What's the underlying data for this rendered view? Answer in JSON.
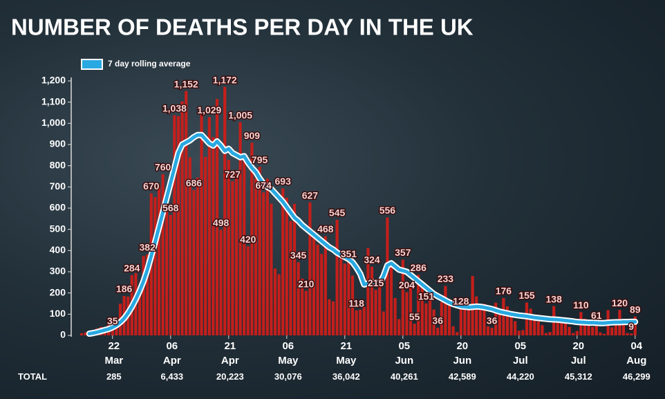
{
  "chart_data": {
    "type": "bar",
    "title": "NUMBER OF DEATHS PER DAY IN THE UK",
    "categories": [
      null,
      null,
      null,
      null,
      null,
      null,
      null,
      null,
      "22 Mar",
      null,
      null,
      null,
      null,
      null,
      null,
      null,
      null,
      null,
      null,
      null,
      null,
      null,
      null,
      "06 Apr",
      null,
      null,
      null,
      null,
      null,
      null,
      null,
      null,
      null,
      null,
      null,
      null,
      null,
      null,
      "21 Apr",
      null,
      null,
      null,
      null,
      null,
      null,
      null,
      null,
      null,
      null,
      null,
      null,
      null,
      null,
      "06 May",
      null,
      null,
      null,
      null,
      null,
      null,
      null,
      null,
      null,
      null,
      null,
      null,
      null,
      null,
      "21 May",
      null,
      null,
      null,
      null,
      null,
      null,
      null,
      null,
      null,
      null,
      null,
      null,
      null,
      null,
      "05 Jun",
      null,
      null,
      null,
      null,
      null,
      null,
      null,
      null,
      null,
      null,
      null,
      null,
      null,
      null,
      "20 Jun",
      null,
      null,
      null,
      null,
      null,
      null,
      null,
      null,
      null,
      null,
      null,
      null,
      null,
      null,
      "05 Jul",
      null,
      null,
      null,
      null,
      null,
      null,
      null,
      null,
      null,
      null,
      null,
      null,
      null,
      null,
      "20 Jul",
      null,
      null,
      null,
      null,
      null,
      null,
      null,
      null,
      null,
      null,
      null,
      null,
      null,
      null,
      "04 Aug"
    ],
    "color": "#c41f1b",
    "values": [
      10,
      14,
      20,
      16,
      33,
      40,
      33,
      56,
      35,
      74,
      149,
      186,
      183,
      284,
      294,
      214,
      374,
      382,
      670,
      652,
      708,
      760,
      621,
      568,
      1038,
      1034,
      1103,
      1152,
      839,
      686,
      744,
      1044,
      842,
      1029,
      935,
      1115,
      498,
      1172,
      828,
      727,
      763,
      1005,
      843,
      420,
      909,
      739,
      795,
      674,
      739,
      621,
      315,
      288,
      693,
      649,
      539,
      620,
      345,
      268,
      210,
      627,
      494,
      428,
      384,
      468,
      170,
      160,
      545,
      363,
      338,
      351,
      282,
      118,
      121,
      134,
      412,
      324,
      215,
      256,
      113,
      556,
      324,
      176,
      77,
      357,
      204,
      245,
      55,
      286,
      245,
      151,
      184,
      122,
      36,
      157,
      233,
      171,
      43,
      15,
      128,
      135,
      149,
      280,
      184,
      122,
      149,
      43,
      36,
      154,
      100,
      176,
      137,
      89,
      67,
      22,
      25,
      155,
      126,
      85,
      66,
      48,
      11,
      16,
      138,
      85,
      64,
      66,
      40,
      11,
      21,
      110,
      79,
      63,
      40,
      61,
      14,
      7,
      119,
      38,
      49,
      120,
      74,
      11,
      9,
      89
    ],
    "value_labels": [
      null,
      null,
      null,
      null,
      null,
      null,
      null,
      null,
      "35",
      null,
      null,
      "186",
      null,
      "284",
      null,
      null,
      null,
      "382",
      "670",
      null,
      null,
      "760",
      null,
      "568",
      "1,038",
      null,
      null,
      "1,152",
      null,
      "686",
      null,
      null,
      null,
      "1,029",
      null,
      null,
      "498",
      "1,172",
      null,
      "727",
      null,
      "1,005",
      null,
      "420",
      "909",
      null,
      "795",
      "674",
      null,
      null,
      null,
      null,
      "693",
      null,
      null,
      null,
      "345",
      null,
      "210",
      "627",
      null,
      null,
      null,
      "468",
      null,
      null,
      "545",
      null,
      null,
      "351",
      null,
      "118",
      null,
      null,
      null,
      "324",
      "215",
      null,
      null,
      "556",
      null,
      null,
      null,
      "357",
      "204",
      null,
      "55",
      "286",
      null,
      "151",
      null,
      null,
      "36",
      null,
      "233",
      null,
      null,
      null,
      "128",
      null,
      null,
      null,
      null,
      null,
      null,
      null,
      "36",
      null,
      null,
      "176",
      null,
      null,
      null,
      null,
      null,
      "155",
      null,
      null,
      null,
      null,
      null,
      null,
      "138",
      null,
      null,
      null,
      null,
      null,
      null,
      "110",
      null,
      null,
      null,
      "61",
      null,
      null,
      null,
      null,
      null,
      "120",
      null,
      null,
      "9",
      "89"
    ],
    "line": {
      "name": "7 day rolling average",
      "color": "#29a9e1",
      "values": [
        null,
        null,
        8,
        11,
        15,
        20,
        25,
        30,
        38,
        48,
        62,
        80,
        105,
        135,
        170,
        210,
        255,
        310,
        375,
        440,
        510,
        580,
        650,
        720,
        790,
        860,
        900,
        910,
        920,
        935,
        945,
        945,
        925,
        905,
        895,
        915,
        895,
        870,
        880,
        860,
        850,
        840,
        845,
        815,
        790,
        770,
        740,
        715,
        700,
        690,
        670,
        650,
        630,
        605,
        580,
        555,
        540,
        520,
        505,
        490,
        475,
        460,
        445,
        430,
        415,
        405,
        390,
        380,
        370,
        360,
        345,
        320,
        290,
        240,
        245,
        250,
        250,
        245,
        280,
        330,
        340,
        325,
        310,
        305,
        300,
        285,
        270,
        255,
        240,
        225,
        210,
        195,
        185,
        175,
        165,
        155,
        148,
        142,
        137,
        135,
        133,
        134,
        136,
        135,
        132,
        128,
        124,
        118,
        112,
        108,
        104,
        100,
        97,
        94,
        92,
        90,
        87,
        84,
        82,
        80,
        78,
        76,
        75,
        74,
        72,
        70,
        68,
        66,
        63,
        62,
        61,
        60,
        60,
        59,
        58,
        58,
        60,
        61,
        62,
        62,
        63,
        63,
        64,
        64
      ]
    },
    "ylim": [
      0,
      1200
    ],
    "yticks": [
      0,
      100,
      200,
      300,
      400,
      500,
      600,
      700,
      800,
      900,
      {
        "value": 1000,
        "label": "1,000"
      },
      {
        "value": 1100,
        "label": "1,100"
      },
      {
        "value": 1200,
        "label": "1,200"
      }
    ],
    "totals": {
      "label": "TOTAL",
      "values": [
        "285",
        "6,433",
        "20,223",
        "30,076",
        "36,042",
        "40,261",
        "42,589",
        "44,220",
        "45,312",
        "46,299"
      ]
    }
  }
}
